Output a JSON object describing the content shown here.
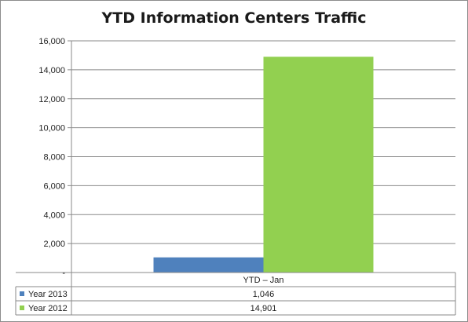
{
  "chart_data": {
    "type": "bar",
    "title": "YTD Information Centers Traffic",
    "categories": [
      "YTD – Jan"
    ],
    "series": [
      {
        "name": "Year 2013",
        "values": [
          1046
        ],
        "color": "#4f81bd",
        "label": "1,046"
      },
      {
        "name": "Year 2012",
        "values": [
          14901
        ],
        "color": "#92d050",
        "label": "14,901"
      }
    ],
    "ylim": [
      0,
      16000
    ],
    "yticks": [
      0,
      2000,
      4000,
      6000,
      8000,
      10000,
      12000,
      14000,
      16000
    ],
    "ytick_labels": [
      "-",
      "2,000",
      "4,000",
      "6,000",
      "8,000",
      "10,000",
      "12,000",
      "14,000",
      "16,000"
    ],
    "grid": true,
    "legend": "data-table"
  }
}
